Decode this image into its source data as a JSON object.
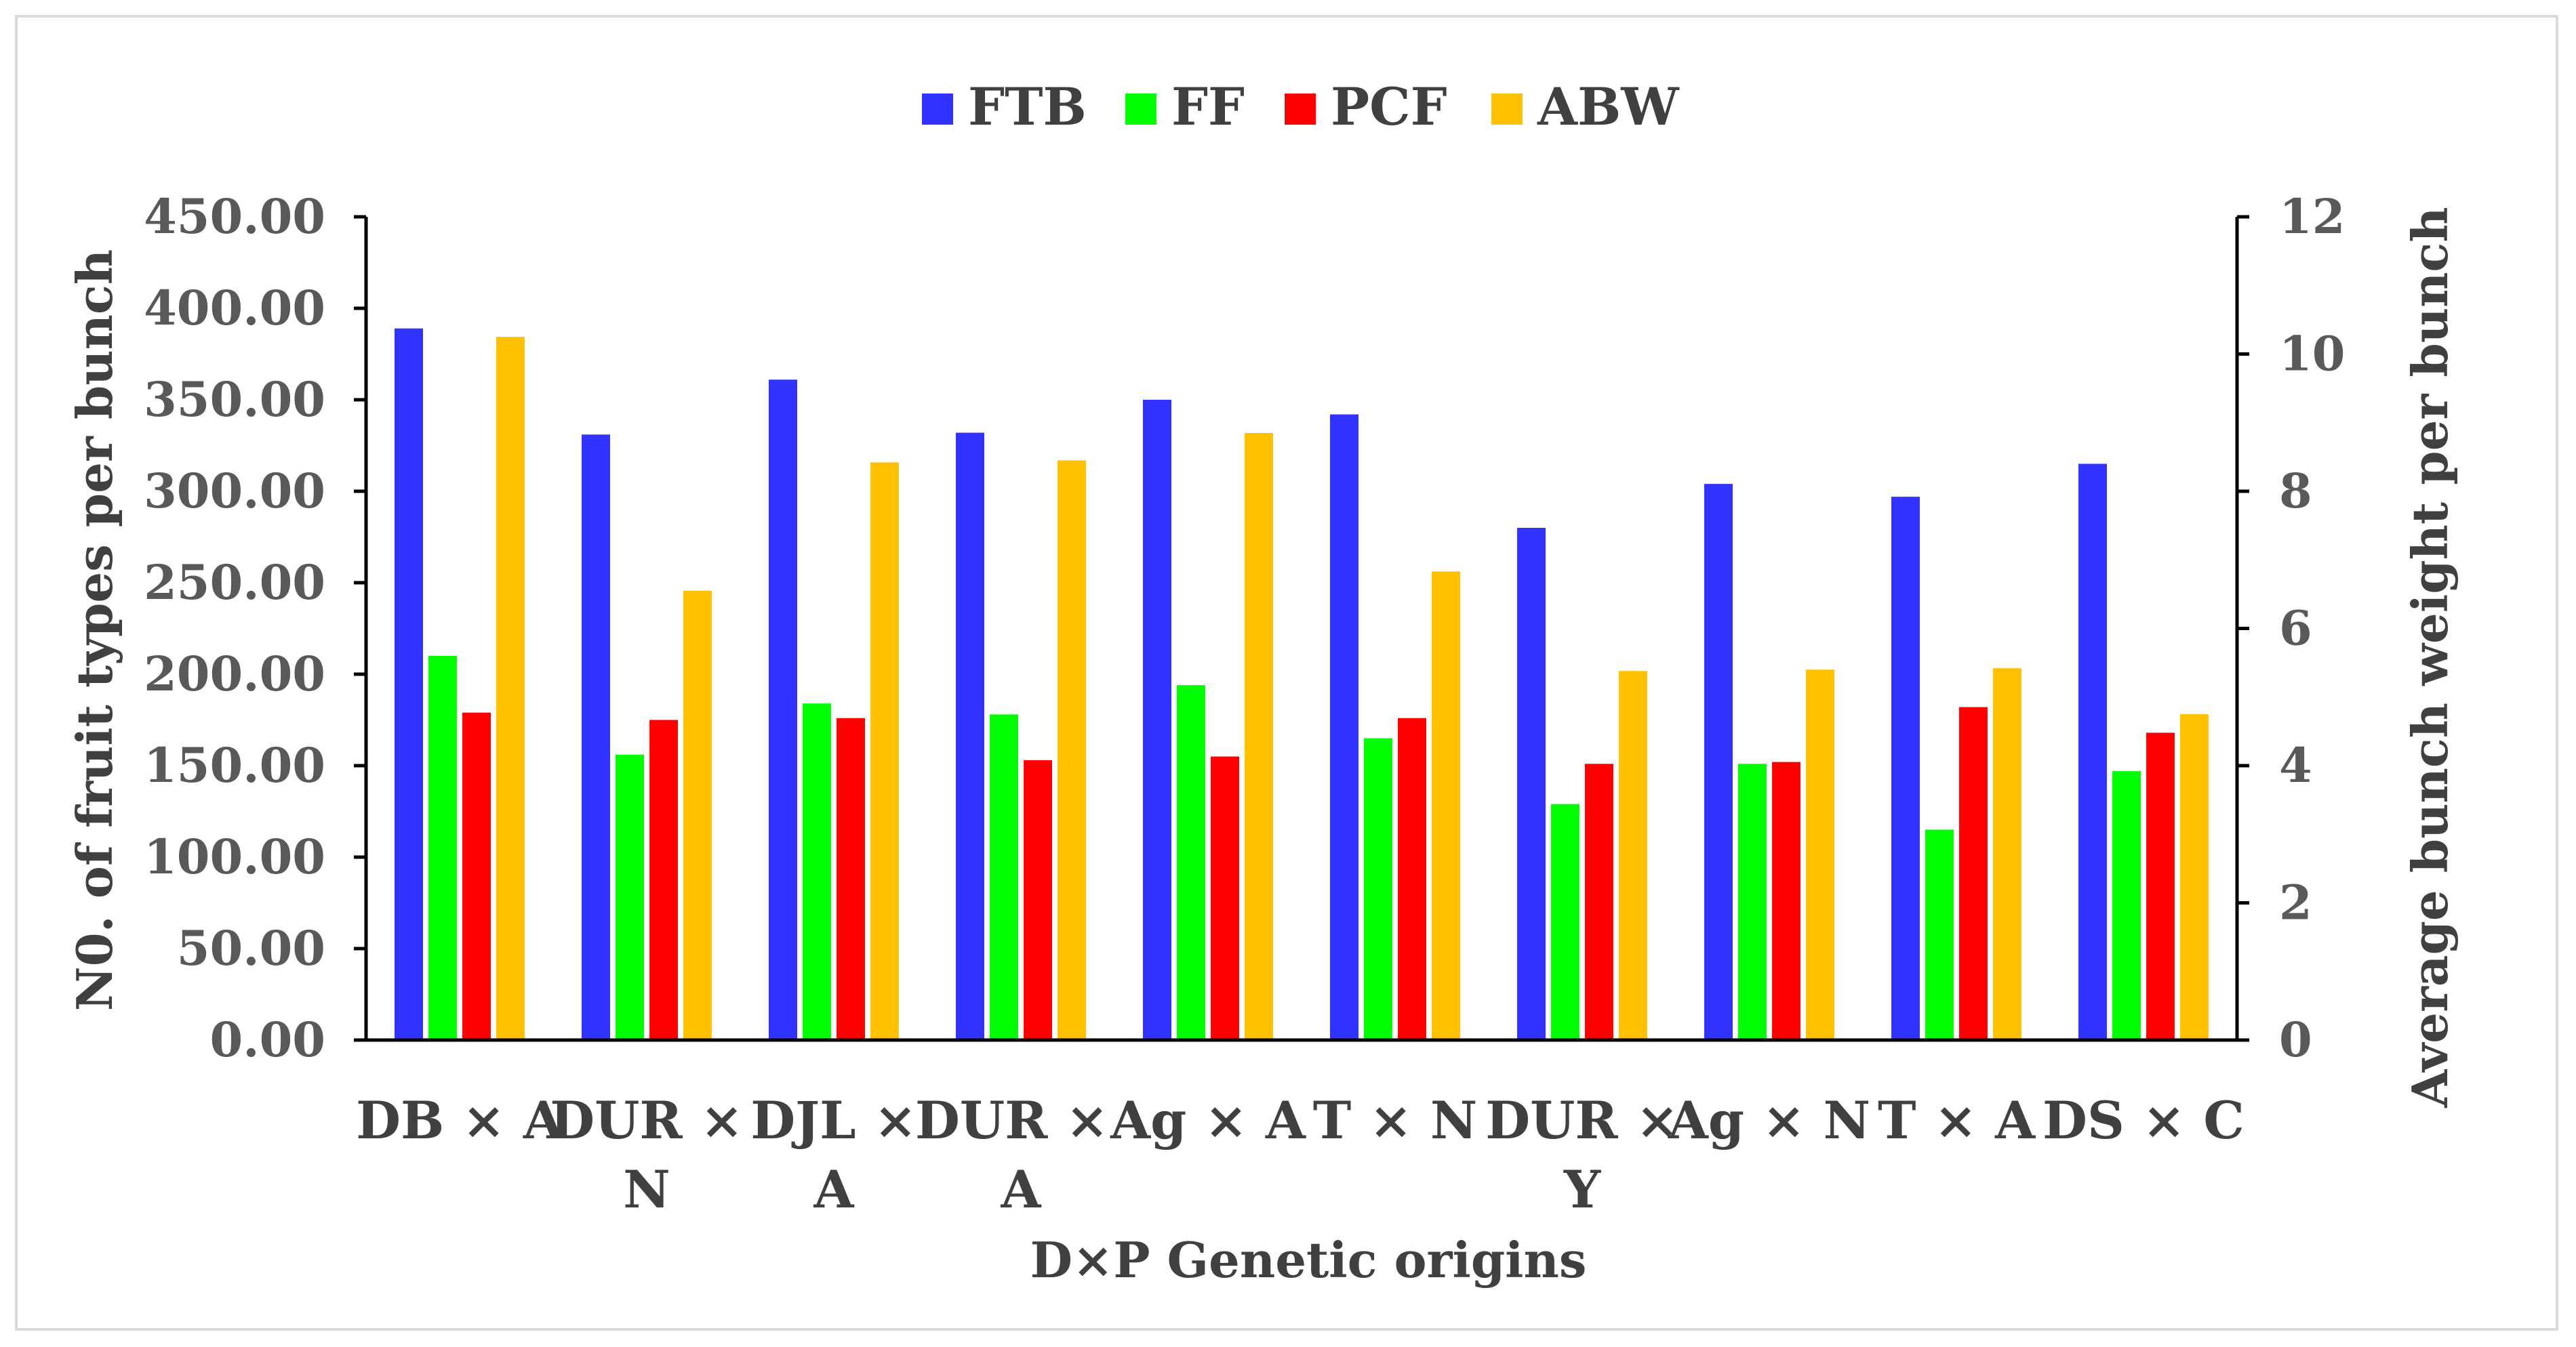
{
  "chart_data": {
    "type": "bar",
    "title": "",
    "xlabel": "D×P Genetic origins",
    "ylabel": "N0. of fruit types per bunch",
    "y2label": "Average bunch weight per bunch",
    "ylim": [
      0,
      450
    ],
    "y2lim": [
      0,
      12
    ],
    "y_ticks": [
      "0.00",
      "50.00",
      "100.00",
      "150.00",
      "200.00",
      "250.00",
      "300.00",
      "350.00",
      "400.00",
      "450.00"
    ],
    "y2_ticks": [
      "0",
      "2",
      "4",
      "6",
      "8",
      "10",
      "12"
    ],
    "grid": false,
    "legend_position": "top-center",
    "categories": [
      [
        "DB × A"
      ],
      [
        "DUR ×",
        "N"
      ],
      [
        "DJL ×",
        "A"
      ],
      [
        "DUR × ",
        "A"
      ],
      [
        "Ag × A"
      ],
      [
        "T × N"
      ],
      [
        "DUR ×",
        "Y"
      ],
      [
        "Ag × N"
      ],
      [
        "T × A"
      ],
      [
        "DS × C"
      ]
    ],
    "series": [
      {
        "name": "FTB",
        "axis": "left",
        "color": "#3333ff",
        "values": [
          389,
          331,
          361,
          332,
          350,
          342,
          280,
          304,
          297,
          315
        ]
      },
      {
        "name": "FF",
        "axis": "left",
        "color": "#00ff00",
        "values": [
          210,
          156,
          184,
          178,
          194,
          165,
          129,
          151,
          115,
          147
        ]
      },
      {
        "name": "PCF",
        "axis": "left",
        "color": "#ff0000",
        "values": [
          179,
          175,
          176,
          153,
          155,
          176,
          151,
          152,
          182,
          168
        ]
      },
      {
        "name": "ABW",
        "axis": "right",
        "color": "#ffc000",
        "values": [
          10.25,
          6.55,
          8.42,
          8.45,
          8.85,
          6.83,
          5.38,
          5.4,
          5.42,
          4.75
        ]
      }
    ]
  }
}
